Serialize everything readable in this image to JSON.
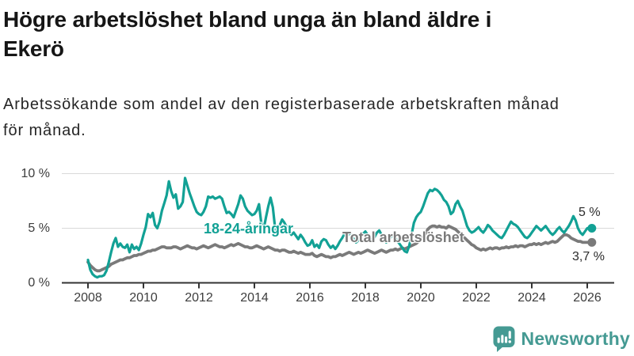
{
  "header": {
    "title_lines": [
      "Högre arbetslöshet bland unga än bland äldre i",
      "Ekerö"
    ],
    "subtitle_lines": [
      "Arbetssökande som andel av den registerbaserade arbetskraften månad",
      "för månad."
    ]
  },
  "branding": {
    "name": "Newsworthy",
    "icon": "newsworthy-speech-bubble-bar-chart-icon",
    "color": "#459A93"
  },
  "colors": {
    "youth_line": "#12A195",
    "total_line": "#7A7A7A",
    "grid_line": "#D9D9D9",
    "axis_line": "#333333",
    "tick_text": "#3D3D3D",
    "title_text": "#161616"
  },
  "chart_data": {
    "type": "line",
    "unit": "%",
    "x_interval": "month",
    "x_start": "2008-01",
    "x_end": "2026-03",
    "x_ticks": [
      2008,
      2010,
      2012,
      2014,
      2016,
      2018,
      2020,
      2022,
      2024,
      2026
    ],
    "y_ticks": {
      "values": [
        0,
        5,
        10
      ],
      "labels": [
        "0 %",
        "5 %",
        "10 %"
      ]
    },
    "ylim": [
      0,
      10.5
    ],
    "grid": "horizontal-only",
    "legend": "inline-labels",
    "annotations": {
      "series_label_youth": "18-24-åringar",
      "series_label_total": "Total arbetslöshet",
      "end_value_youth": "5 %",
      "end_value_total": "3,7 %"
    },
    "series": [
      {
        "name": "18-24-åringar",
        "color": "#12A195",
        "end_dot": true,
        "values": [
          2.1,
          1.2,
          0.8,
          0.6,
          0.5,
          0.6,
          0.6,
          0.7,
          1.1,
          1.9,
          2.8,
          3.6,
          4.1,
          3.3,
          3.6,
          3.3,
          3.2,
          3.5,
          2.8,
          3.5,
          3.1,
          3.3,
          3.0,
          3.6,
          4.4,
          5.1,
          6.3,
          6.0,
          6.4,
          5.3,
          5.0,
          5.6,
          6.6,
          7.3,
          8.0,
          9.3,
          8.4,
          7.8,
          8.1,
          6.8,
          7.0,
          7.4,
          9.6,
          8.9,
          8.2,
          7.6,
          7.0,
          6.5,
          6.3,
          6.2,
          6.5,
          7.0,
          7.9,
          7.8,
          7.9,
          7.7,
          7.8,
          7.9,
          7.7,
          7.0,
          6.4,
          6.5,
          6.3,
          6.0,
          6.6,
          7.2,
          8.0,
          7.7,
          7.0,
          6.6,
          6.4,
          6.2,
          6.3,
          6.6,
          7.2,
          5.4,
          4.9,
          6.0,
          7.0,
          7.8,
          6.9,
          4.9,
          4.6,
          5.3,
          5.8,
          5.5,
          5.1,
          4.7,
          4.4,
          4.6,
          4.3,
          4.0,
          4.4,
          4.1,
          3.7,
          3.4,
          3.5,
          3.9,
          3.3,
          3.5,
          3.2,
          3.8,
          4.0,
          3.9,
          3.5,
          3.2,
          3.4,
          3.1,
          3.4,
          3.8,
          4.1,
          4.5,
          4.2,
          4.6,
          4.4,
          4.0,
          3.7,
          3.9,
          4.2,
          4.5,
          4.7,
          4.4,
          4.1,
          3.8,
          4.2,
          4.6,
          4.8,
          4.4,
          4.0,
          3.7,
          3.9,
          4.2,
          4.4,
          4.1,
          3.8,
          3.5,
          3.2,
          2.9,
          2.8,
          3.4,
          4.4,
          5.5,
          6.0,
          6.3,
          6.5,
          7.0,
          7.6,
          8.2,
          8.5,
          8.4,
          8.6,
          8.5,
          8.3,
          8.0,
          7.6,
          7.4,
          7.0,
          6.3,
          6.5,
          7.2,
          7.5,
          7.0,
          6.6,
          5.9,
          5.2,
          4.8,
          4.6,
          4.7,
          4.9,
          5.1,
          4.8,
          4.6,
          4.9,
          5.3,
          5.1,
          4.8,
          4.6,
          4.4,
          4.2,
          4.1,
          4.4,
          4.8,
          5.2,
          5.6,
          5.4,
          5.3,
          5.1,
          4.8,
          4.5,
          4.2,
          4.1,
          4.3,
          4.6,
          4.9,
          5.2,
          5.0,
          4.8,
          5.0,
          5.2,
          4.9,
          4.6,
          4.4,
          4.6,
          4.9,
          5.1,
          4.8,
          4.6,
          4.9,
          5.2,
          5.6,
          6.1,
          5.7,
          5.0,
          4.6,
          4.4,
          4.7,
          5.0,
          5.0,
          5.0
        ]
      },
      {
        "name": "Total arbetslöshet",
        "color": "#7A7A7A",
        "end_dot": true,
        "values": [
          1.9,
          1.6,
          1.4,
          1.2,
          1.1,
          1.1,
          1.2,
          1.3,
          1.4,
          1.5,
          1.7,
          1.8,
          1.9,
          2.0,
          2.1,
          2.1,
          2.2,
          2.3,
          2.3,
          2.4,
          2.5,
          2.5,
          2.6,
          2.6,
          2.7,
          2.8,
          2.9,
          2.9,
          3.0,
          3.0,
          3.1,
          3.2,
          3.3,
          3.3,
          3.2,
          3.2,
          3.2,
          3.3,
          3.3,
          3.2,
          3.1,
          3.2,
          3.3,
          3.4,
          3.3,
          3.2,
          3.2,
          3.1,
          3.2,
          3.3,
          3.4,
          3.3,
          3.2,
          3.3,
          3.4,
          3.5,
          3.4,
          3.3,
          3.3,
          3.2,
          3.3,
          3.4,
          3.5,
          3.4,
          3.5,
          3.6,
          3.5,
          3.4,
          3.3,
          3.3,
          3.2,
          3.2,
          3.3,
          3.4,
          3.3,
          3.2,
          3.1,
          3.2,
          3.3,
          3.2,
          3.1,
          3.0,
          3.0,
          2.9,
          3.0,
          3.0,
          2.9,
          2.8,
          2.8,
          2.9,
          2.8,
          2.7,
          2.8,
          2.7,
          2.6,
          2.6,
          2.6,
          2.7,
          2.5,
          2.4,
          2.5,
          2.6,
          2.5,
          2.4,
          2.4,
          2.3,
          2.4,
          2.4,
          2.5,
          2.6,
          2.5,
          2.6,
          2.7,
          2.8,
          2.7,
          2.6,
          2.7,
          2.8,
          2.7,
          2.8,
          2.9,
          3.0,
          2.9,
          2.8,
          2.7,
          2.8,
          2.9,
          3.0,
          2.9,
          2.8,
          2.9,
          3.0,
          3.0,
          3.1,
          3.0,
          3.1,
          3.2,
          3.1,
          3.2,
          3.3,
          3.4,
          3.5,
          3.6,
          3.8,
          4.0,
          4.2,
          4.5,
          4.9,
          5.1,
          5.2,
          5.2,
          5.1,
          5.2,
          5.1,
          5.1,
          5.0,
          5.2,
          5.1,
          5.0,
          4.9,
          4.7,
          4.5,
          4.3,
          4.1,
          3.9,
          3.7,
          3.5,
          3.4,
          3.2,
          3.1,
          3.0,
          3.1,
          3.0,
          3.1,
          3.2,
          3.1,
          3.2,
          3.2,
          3.1,
          3.2,
          3.2,
          3.3,
          3.2,
          3.3,
          3.3,
          3.4,
          3.3,
          3.4,
          3.4,
          3.3,
          3.4,
          3.5,
          3.5,
          3.6,
          3.5,
          3.6,
          3.5,
          3.6,
          3.7,
          3.6,
          3.7,
          3.8,
          3.7,
          3.8,
          4.0,
          4.2,
          4.4,
          4.4,
          4.3,
          4.1,
          4.0,
          3.9,
          3.8,
          3.8,
          3.7,
          3.7,
          3.7,
          3.7,
          3.7
        ]
      }
    ]
  }
}
